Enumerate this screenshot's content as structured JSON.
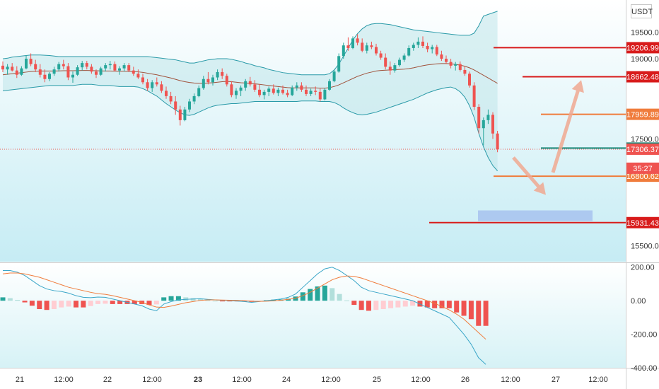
{
  "header": {
    "currency_label": "USDT"
  },
  "chart_data": [
    {
      "type": "candlestick",
      "panel": "price",
      "ylim": [
        15200,
        20100
      ],
      "price_ticks": [
        "19500.00",
        "19000.00",
        "17500.00",
        "15500.00"
      ],
      "last_price_dotted": 17306.37,
      "candles_ohlc": [
        [
          18870,
          18950,
          18750,
          18800
        ],
        [
          18800,
          18900,
          18700,
          18850
        ],
        [
          18850,
          18920,
          18760,
          18780
        ],
        [
          18780,
          18860,
          18640,
          18700
        ],
        [
          18700,
          18860,
          18680,
          18820
        ],
        [
          18820,
          19060,
          18800,
          19000
        ],
        [
          19000,
          19100,
          18860,
          18900
        ],
        [
          18900,
          18980,
          18750,
          18800
        ],
        [
          18800,
          18900,
          18650,
          18700
        ],
        [
          18700,
          18800,
          18560,
          18620
        ],
        [
          18620,
          18750,
          18580,
          18720
        ],
        [
          18720,
          18850,
          18680,
          18800
        ],
        [
          18800,
          18940,
          18760,
          18900
        ],
        [
          18900,
          18980,
          18800,
          18860
        ],
        [
          18860,
          18920,
          18600,
          18650
        ],
        [
          18650,
          18760,
          18550,
          18700
        ],
        [
          18700,
          18880,
          18680,
          18840
        ],
        [
          18840,
          18960,
          18780,
          18920
        ],
        [
          18920,
          18960,
          18800,
          18850
        ],
        [
          18850,
          18900,
          18720,
          18760
        ],
        [
          18760,
          18800,
          18640,
          18700
        ],
        [
          18700,
          18850,
          18680,
          18820
        ],
        [
          18820,
          18920,
          18760,
          18880
        ],
        [
          18880,
          18960,
          18800,
          18900
        ],
        [
          18900,
          18950,
          18760,
          18780
        ],
        [
          18780,
          18860,
          18700,
          18820
        ],
        [
          18820,
          18920,
          18760,
          18880
        ],
        [
          18880,
          18920,
          18750,
          18780
        ],
        [
          18780,
          18850,
          18680,
          18720
        ],
        [
          18720,
          18800,
          18620,
          18650
        ],
        [
          18650,
          18720,
          18520,
          18560
        ],
        [
          18560,
          18620,
          18400,
          18450
        ],
        [
          18450,
          18600,
          18380,
          18560
        ],
        [
          18560,
          18650,
          18480,
          18520
        ],
        [
          18520,
          18580,
          18360,
          18400
        ],
        [
          18400,
          18480,
          18250,
          18300
        ],
        [
          18300,
          18380,
          18150,
          18200
        ],
        [
          18200,
          18300,
          17950,
          18050
        ],
        [
          18050,
          18120,
          17750,
          17850
        ],
        [
          17850,
          18100,
          17830,
          18050
        ],
        [
          18050,
          18250,
          18000,
          18200
        ],
        [
          18200,
          18350,
          18150,
          18300
        ],
        [
          18300,
          18500,
          18280,
          18450
        ],
        [
          18450,
          18680,
          18420,
          18620
        ],
        [
          18620,
          18750,
          18520,
          18560
        ],
        [
          18560,
          18700,
          18500,
          18650
        ],
        [
          18650,
          18800,
          18600,
          18750
        ],
        [
          18750,
          18820,
          18620,
          18680
        ],
        [
          18680,
          18720,
          18480,
          18520
        ],
        [
          18520,
          18580,
          18280,
          18320
        ],
        [
          18320,
          18450,
          18250,
          18400
        ],
        [
          18400,
          18500,
          18300,
          18460
        ],
        [
          18460,
          18620,
          18400,
          18580
        ],
        [
          18580,
          18660,
          18480,
          18520
        ],
        [
          18520,
          18600,
          18380,
          18420
        ],
        [
          18420,
          18520,
          18280,
          18320
        ],
        [
          18320,
          18420,
          18240,
          18380
        ],
        [
          18380,
          18480,
          18300,
          18440
        ],
        [
          18440,
          18520,
          18330,
          18360
        ],
        [
          18360,
          18460,
          18300,
          18420
        ],
        [
          18420,
          18500,
          18330,
          18360
        ],
        [
          18360,
          18420,
          18280,
          18320
        ],
        [
          18320,
          18500,
          18300,
          18460
        ],
        [
          18460,
          18560,
          18400,
          18500
        ],
        [
          18500,
          18560,
          18380,
          18420
        ],
        [
          18420,
          18500,
          18300,
          18340
        ],
        [
          18340,
          18440,
          18300,
          18400
        ],
        [
          18400,
          18480,
          18320,
          18380
        ],
        [
          18380,
          18440,
          18200,
          18240
        ],
        [
          18240,
          18450,
          18220,
          18420
        ],
        [
          18420,
          18620,
          18400,
          18580
        ],
        [
          18580,
          18800,
          18560,
          18760
        ],
        [
          18760,
          19100,
          18740,
          19050
        ],
        [
          19050,
          19300,
          19000,
          19250
        ],
        [
          19250,
          19400,
          19150,
          19200
        ],
        [
          19200,
          19420,
          19180,
          19380
        ],
        [
          19380,
          19460,
          19250,
          19300
        ],
        [
          19300,
          19380,
          19120,
          19150
        ],
        [
          19150,
          19300,
          19100,
          19250
        ],
        [
          19250,
          19320,
          19180,
          19220
        ],
        [
          19220,
          19280,
          19060,
          19100
        ],
        [
          19100,
          19150,
          18980,
          19020
        ],
        [
          19020,
          19100,
          18800,
          18850
        ],
        [
          18850,
          18950,
          18700,
          18780
        ],
        [
          18780,
          18920,
          18740,
          18880
        ],
        [
          18880,
          19020,
          18850,
          18980
        ],
        [
          18980,
          19100,
          18940,
          19060
        ],
        [
          19060,
          19250,
          19040,
          19200
        ],
        [
          19200,
          19300,
          19150,
          19260
        ],
        [
          19260,
          19400,
          19200,
          19320
        ],
        [
          19320,
          19420,
          19200,
          19240
        ],
        [
          19240,
          19300,
          19120,
          19180
        ],
        [
          19180,
          19260,
          19100,
          19220
        ],
        [
          19220,
          19260,
          19050,
          19080
        ],
        [
          19080,
          19150,
          18960,
          19000
        ],
        [
          19000,
          19060,
          18900,
          18940
        ],
        [
          18940,
          19000,
          18820,
          18870
        ],
        [
          18870,
          18940,
          18780,
          18900
        ],
        [
          18900,
          18950,
          18760,
          18790
        ],
        [
          18790,
          18860,
          18680,
          18720
        ],
        [
          18720,
          18760,
          18460,
          18500
        ],
        [
          18500,
          18560,
          18040,
          18100
        ],
        [
          18100,
          18150,
          17600,
          17700
        ],
        [
          17700,
          17900,
          17380,
          17850
        ],
        [
          17850,
          18050,
          17780,
          17950
        ],
        [
          17950,
          18000,
          17500,
          17600
        ],
        [
          17600,
          17650,
          17250,
          17306
        ]
      ],
      "bollinger": {
        "basis": [
          18700,
          18710,
          18720,
          18730,
          18740,
          18750,
          18760,
          18765,
          18770,
          18770,
          18770,
          18770,
          18772,
          18775,
          18775,
          18775,
          18778,
          18780,
          18780,
          18778,
          18775,
          18772,
          18770,
          18770,
          18768,
          18765,
          18765,
          18762,
          18760,
          18755,
          18745,
          18730,
          18715,
          18700,
          18680,
          18660,
          18640,
          18615,
          18590,
          18570,
          18555,
          18545,
          18540,
          18540,
          18545,
          18550,
          18560,
          18570,
          18575,
          18570,
          18560,
          18550,
          18545,
          18540,
          18530,
          18520,
          18510,
          18500,
          18490,
          18480,
          18470,
          18460,
          18455,
          18455,
          18455,
          18455,
          18455,
          18455,
          18450,
          18450,
          18460,
          18480,
          18510,
          18550,
          18590,
          18630,
          18670,
          18700,
          18730,
          18750,
          18770,
          18780,
          18785,
          18790,
          18795,
          18800,
          18805,
          18815,
          18830,
          18850,
          18870,
          18885,
          18895,
          18905,
          18910,
          18910,
          18905,
          18895,
          18880,
          18860,
          18830,
          18790,
          18740,
          18690,
          18640,
          18590,
          18540
        ],
        "upper": [
          19000,
          19010,
          19030,
          19040,
          19050,
          19060,
          19070,
          19070,
          19070,
          19065,
          19060,
          19050,
          19040,
          19040,
          19040,
          19040,
          19040,
          19040,
          19040,
          19040,
          19040,
          19040,
          19040,
          19040,
          19040,
          19040,
          19040,
          19040,
          19040,
          19040,
          19040,
          19040,
          19030,
          19020,
          19010,
          19000,
          18990,
          18980,
          18960,
          18940,
          18920,
          18920,
          18940,
          18960,
          18980,
          18990,
          19000,
          19000,
          19000,
          18990,
          18970,
          18950,
          18920,
          18900,
          18870,
          18850,
          18830,
          18800,
          18780,
          18760,
          18740,
          18730,
          18720,
          18710,
          18700,
          18700,
          18700,
          18700,
          18700,
          18700,
          18720,
          18790,
          18900,
          19050,
          19200,
          19350,
          19470,
          19560,
          19620,
          19650,
          19660,
          19660,
          19650,
          19640,
          19620,
          19600,
          19580,
          19560,
          19540,
          19530,
          19520,
          19510,
          19500,
          19490,
          19480,
          19470,
          19460,
          19450,
          19440,
          19440,
          19440,
          19480,
          19620,
          19800,
          19830,
          19860,
          19890
        ],
        "lower": [
          18400,
          18410,
          18420,
          18430,
          18440,
          18450,
          18460,
          18470,
          18480,
          18490,
          18500,
          18500,
          18500,
          18500,
          18500,
          18500,
          18510,
          18520,
          18520,
          18520,
          18510,
          18500,
          18500,
          18500,
          18490,
          18480,
          18480,
          18480,
          18480,
          18470,
          18440,
          18400,
          18350,
          18300,
          18230,
          18160,
          18100,
          18040,
          17990,
          17950,
          17940,
          17960,
          18000,
          18040,
          18080,
          18110,
          18130,
          18140,
          18150,
          18160,
          18160,
          18170,
          18180,
          18190,
          18200,
          18200,
          18200,
          18200,
          18200,
          18200,
          18200,
          18200,
          18200,
          18200,
          18210,
          18210,
          18210,
          18210,
          18200,
          18200,
          18200,
          18180,
          18140,
          18080,
          18030,
          17990,
          17960,
          17950,
          17960,
          17980,
          18000,
          18030,
          18060,
          18090,
          18120,
          18150,
          18180,
          18210,
          18240,
          18280,
          18320,
          18360,
          18390,
          18420,
          18440,
          18460,
          18470,
          18440,
          18380,
          18280,
          18120,
          17900,
          17600,
          17350,
          17150,
          17000,
          16900
        ]
      },
      "horizontal_levels": [
        {
          "price": 19206.99,
          "label": "19206.99",
          "color": "#d81b1b"
        },
        {
          "price": 18662.48,
          "label": "18662.48",
          "color": "#d81b1b"
        },
        {
          "price": 17959.89,
          "label": "17959.89",
          "color": "#f07c3c"
        },
        {
          "price": 17327.56,
          "label": "17327.56",
          "color": "#1a8a7a"
        },
        {
          "price": 16800.62,
          "label": "16800.62",
          "color": "#f07c3c"
        },
        {
          "price": 15931.43,
          "label": "15931.43",
          "color": "#d81b1b"
        }
      ],
      "price_tags": [
        {
          "price": 17306.37,
          "label": "17306.37",
          "color": "#ef5350"
        },
        {
          "price": 16950,
          "label": "35:27",
          "color": "#ef5350"
        }
      ],
      "zone": {
        "price_top": 16160,
        "price_bottom": 15960,
        "color": "#a8c4f0"
      },
      "arrows": [
        {
          "from_price": 17150,
          "to_price": 16450,
          "color": "#f0a890"
        },
        {
          "from_price": 16870,
          "to_price": 18600,
          "color": "#f0a890"
        }
      ]
    },
    {
      "type": "macd",
      "panel": "indicator",
      "ylim": [
        -400,
        220
      ],
      "y_ticks": [
        "200.00",
        "0.00",
        "-200.00",
        "-400.00"
      ],
      "x_ticks": [
        "21",
        "12:00",
        "22",
        "12:00",
        "23",
        "12:00",
        "24",
        "12:00",
        "25",
        "12:00",
        "26",
        "12:00",
        "27",
        "12:00"
      ],
      "macd_line": [
        180,
        180,
        170,
        150,
        120,
        90,
        70,
        60,
        55,
        45,
        30,
        20,
        18,
        22,
        20,
        10,
        0,
        -10,
        -20,
        -30,
        -50,
        -60,
        -20,
        -5,
        5,
        8,
        10,
        12,
        8,
        5,
        2,
        0,
        -2,
        -5,
        -10,
        -5,
        0,
        5,
        10,
        20,
        40,
        80,
        120,
        160,
        190,
        200,
        180,
        150,
        120,
        80,
        60,
        50,
        40,
        30,
        20,
        10,
        0,
        -20,
        -40,
        -60,
        -80,
        -100,
        -150,
        -200,
        -260,
        -340,
        -380
      ],
      "signal_line": [
        160,
        165,
        165,
        160,
        150,
        140,
        125,
        110,
        95,
        80,
        70,
        60,
        50,
        42,
        38,
        30,
        20,
        10,
        0,
        -10,
        -25,
        -38,
        -40,
        -32,
        -22,
        -12,
        -5,
        2,
        5,
        5,
        4,
        3,
        2,
        0,
        -3,
        -4,
        -3,
        -1,
        3,
        8,
        15,
        30,
        50,
        75,
        100,
        125,
        140,
        148,
        145,
        135,
        120,
        105,
        90,
        75,
        60,
        45,
        30,
        15,
        0,
        -15,
        -35,
        -55,
        -80,
        -110,
        -150,
        -190,
        -230
      ],
      "histogram": [
        20,
        15,
        5,
        -10,
        -30,
        -50,
        -55,
        -50,
        -40,
        -35,
        -40,
        -40,
        -32,
        -20,
        -18,
        -20,
        -20,
        -20,
        -20,
        -20,
        -25,
        -22,
        20,
        27,
        27,
        20,
        15,
        10,
        3,
        0,
        -2,
        -3,
        -4,
        -5,
        -7,
        -1,
        3,
        6,
        7,
        12,
        25,
        50,
        70,
        85,
        90,
        75,
        40,
        2,
        -25,
        -55,
        -60,
        -55,
        -50,
        -45,
        -40,
        -35,
        -30,
        -35,
        -40,
        -45,
        -45,
        -45,
        -70,
        -90,
        -110,
        -150,
        -150
      ]
    }
  ]
}
